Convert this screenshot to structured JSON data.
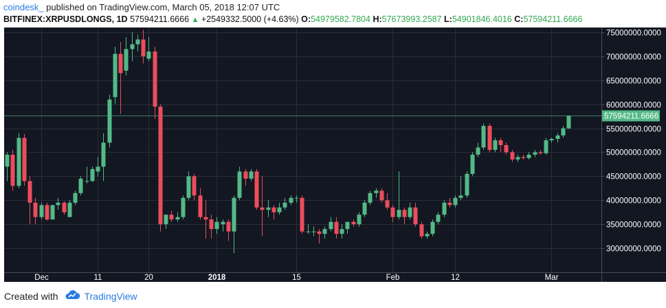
{
  "header": {
    "brand": "coindesk_",
    "published_text": "published on TradingView.com, March 05, 2018 12:07 UTC",
    "symbol": "BITFINEX:XRPUSDLONGS, 1D",
    "last": "57594211.6666",
    "change": "+2549332.5000 (+4.63%)",
    "o_label": "O:",
    "o_value": "54979582.7804",
    "h_label": "H:",
    "h_value": "57673993.2587",
    "l_label": "L:",
    "l_value": "54901846.4016",
    "c_label": "C:",
    "c_value": "57594211.6666"
  },
  "footer": {
    "created_with": "Created with",
    "tradingview": "TradingView"
  },
  "colors": {
    "background": "#131722",
    "grid": "#2a2e39",
    "up": "#53b987",
    "down": "#eb4d5c",
    "price_line": "#3f7d63",
    "price_label_bg": "#53b987",
    "axis_text": "#ffffff"
  },
  "chart_data": {
    "type": "candlestick",
    "ylim": [
      25000000,
      76000000
    ],
    "y_ticks": [
      {
        "value": 30000000,
        "label": "30000000.0000"
      },
      {
        "value": 35000000,
        "label": "35000000.0000"
      },
      {
        "value": 40000000,
        "label": "40000000.0000"
      },
      {
        "value": 45000000,
        "label": "45000000.0000"
      },
      {
        "value": 50000000,
        "label": "50000000.0000"
      },
      {
        "value": 55000000,
        "label": "55000000.0000"
      },
      {
        "value": 60000000,
        "label": "60000000.0000"
      },
      {
        "value": 65000000,
        "label": "65000000.0000"
      },
      {
        "value": 70000000,
        "label": "70000000.0000"
      },
      {
        "value": 75000000,
        "label": "75000000.0000"
      }
    ],
    "x_ticks": [
      {
        "index": 6,
        "label": "Dec",
        "bold": false
      },
      {
        "index": 16,
        "label": "11",
        "bold": false
      },
      {
        "index": 25,
        "label": "20",
        "bold": false
      },
      {
        "index": 37,
        "label": "2018",
        "bold": true
      },
      {
        "index": 51,
        "label": "15",
        "bold": false
      },
      {
        "index": 68,
        "label": "Feb",
        "bold": false
      },
      {
        "index": 79,
        "label": "12",
        "bold": false
      },
      {
        "index": 96,
        "label": "Mar",
        "bold": false
      }
    ],
    "last_price": 57594211.6666,
    "last_price_label": "57594211.6666",
    "candles": [
      {
        "o": 47000000,
        "h": 50000000,
        "l": 44000000,
        "c": 49500000
      },
      {
        "o": 49500000,
        "h": 50500000,
        "l": 42000000,
        "c": 43000000
      },
      {
        "o": 43000000,
        "h": 54000000,
        "l": 42500000,
        "c": 53000000
      },
      {
        "o": 53000000,
        "h": 53800000,
        "l": 43000000,
        "c": 44000000
      },
      {
        "o": 44000000,
        "h": 45000000,
        "l": 35000000,
        "c": 39500000
      },
      {
        "o": 39500000,
        "h": 40500000,
        "l": 35000000,
        "c": 36500000
      },
      {
        "o": 36500000,
        "h": 39500000,
        "l": 36000000,
        "c": 39000000
      },
      {
        "o": 39000000,
        "h": 39500000,
        "l": 35800000,
        "c": 36000000
      },
      {
        "o": 36000000,
        "h": 39000000,
        "l": 36000000,
        "c": 39000000
      },
      {
        "o": 39000000,
        "h": 40500000,
        "l": 38000000,
        "c": 39500000
      },
      {
        "o": 39500000,
        "h": 39800000,
        "l": 37000000,
        "c": 37500000
      },
      {
        "o": 36500000,
        "h": 40000000,
        "l": 36500000,
        "c": 39500000
      },
      {
        "o": 39500000,
        "h": 42000000,
        "l": 39000000,
        "c": 41500000
      },
      {
        "o": 41500000,
        "h": 45000000,
        "l": 41000000,
        "c": 44500000
      },
      {
        "o": 44000000,
        "h": 47000000,
        "l": 43500000,
        "c": 44000000
      },
      {
        "o": 44000000,
        "h": 47000000,
        "l": 43800000,
        "c": 46500000
      },
      {
        "o": 46000000,
        "h": 49000000,
        "l": 45000000,
        "c": 47000000
      },
      {
        "o": 47000000,
        "h": 54000000,
        "l": 44000000,
        "c": 52000000
      },
      {
        "o": 52000000,
        "h": 62000000,
        "l": 51000000,
        "c": 61000000
      },
      {
        "o": 61500000,
        "h": 72000000,
        "l": 60000000,
        "c": 70500000
      },
      {
        "o": 70500000,
        "h": 73000000,
        "l": 58000000,
        "c": 66500000
      },
      {
        "o": 67000000,
        "h": 74000000,
        "l": 66000000,
        "c": 71500000
      },
      {
        "o": 71500000,
        "h": 75000000,
        "l": 69000000,
        "c": 72500000
      },
      {
        "o": 72500000,
        "h": 74500000,
        "l": 71000000,
        "c": 73500000
      },
      {
        "o": 73500000,
        "h": 75500000,
        "l": 68500000,
        "c": 70000000
      },
      {
        "o": 69500000,
        "h": 74000000,
        "l": 69000000,
        "c": 71000000
      },
      {
        "o": 71000000,
        "h": 72000000,
        "l": 57000000,
        "c": 59500000
      },
      {
        "o": 59500000,
        "h": 60000000,
        "l": 33500000,
        "c": 35000000
      },
      {
        "o": 35000000,
        "h": 37000000,
        "l": 34000000,
        "c": 37000000
      },
      {
        "o": 37000000,
        "h": 37800000,
        "l": 35500000,
        "c": 36000000
      },
      {
        "o": 36000000,
        "h": 37500000,
        "l": 35500000,
        "c": 36500000
      },
      {
        "o": 36500000,
        "h": 41000000,
        "l": 36000000,
        "c": 40500000
      },
      {
        "o": 40500000,
        "h": 46000000,
        "l": 40000000,
        "c": 45000000
      },
      {
        "o": 45000000,
        "h": 45500000,
        "l": 40000000,
        "c": 41000000
      },
      {
        "o": 41000000,
        "h": 42500000,
        "l": 36000000,
        "c": 36500000
      },
      {
        "o": 36500000,
        "h": 40000000,
        "l": 32000000,
        "c": 36000000
      },
      {
        "o": 36000000,
        "h": 37000000,
        "l": 32000000,
        "c": 34000000
      },
      {
        "o": 34000000,
        "h": 36500000,
        "l": 33000000,
        "c": 35500000
      },
      {
        "o": 35000000,
        "h": 36000000,
        "l": 33500000,
        "c": 35500000
      },
      {
        "o": 35500000,
        "h": 36000000,
        "l": 31500000,
        "c": 33500000
      },
      {
        "o": 33500000,
        "h": 41000000,
        "l": 29000000,
        "c": 40500000
      },
      {
        "o": 40500000,
        "h": 47000000,
        "l": 40000000,
        "c": 46000000
      },
      {
        "o": 46000000,
        "h": 46500000,
        "l": 43000000,
        "c": 44500000
      },
      {
        "o": 44500000,
        "h": 46500000,
        "l": 44000000,
        "c": 46000000
      },
      {
        "o": 46000000,
        "h": 46500000,
        "l": 38000000,
        "c": 38500000
      },
      {
        "o": 38500000,
        "h": 45000000,
        "l": 32500000,
        "c": 38000000
      },
      {
        "o": 38000000,
        "h": 40000000,
        "l": 36500000,
        "c": 38500000
      },
      {
        "o": 38500000,
        "h": 39000000,
        "l": 36000000,
        "c": 37500000
      },
      {
        "o": 37500000,
        "h": 39500000,
        "l": 37000000,
        "c": 38500000
      },
      {
        "o": 38500000,
        "h": 40500000,
        "l": 38000000,
        "c": 39500000
      },
      {
        "o": 39500000,
        "h": 41000000,
        "l": 39000000,
        "c": 40500000
      },
      {
        "o": 40500000,
        "h": 41000000,
        "l": 39500000,
        "c": 40500000
      },
      {
        "o": 40500000,
        "h": 41000000,
        "l": 33000000,
        "c": 33500000
      },
      {
        "o": 33500000,
        "h": 35000000,
        "l": 33000000,
        "c": 33500000
      },
      {
        "o": 33500000,
        "h": 34500000,
        "l": 32500000,
        "c": 33500000
      },
      {
        "o": 33500000,
        "h": 34000000,
        "l": 31000000,
        "c": 33000000
      },
      {
        "o": 33000000,
        "h": 34500000,
        "l": 32000000,
        "c": 34000000
      },
      {
        "o": 34000000,
        "h": 36500000,
        "l": 33500000,
        "c": 35500000
      },
      {
        "o": 35500000,
        "h": 36500000,
        "l": 32000000,
        "c": 33000000
      },
      {
        "o": 33000000,
        "h": 35000000,
        "l": 32000000,
        "c": 34000000
      },
      {
        "o": 34000000,
        "h": 35500000,
        "l": 33000000,
        "c": 35500000
      },
      {
        "o": 35500000,
        "h": 36000000,
        "l": 34500000,
        "c": 35000000
      },
      {
        "o": 35000000,
        "h": 37500000,
        "l": 34500000,
        "c": 37000000
      },
      {
        "o": 37000000,
        "h": 40000000,
        "l": 36500000,
        "c": 39500000
      },
      {
        "o": 39500000,
        "h": 42000000,
        "l": 39000000,
        "c": 41500000
      },
      {
        "o": 41500000,
        "h": 42500000,
        "l": 40500000,
        "c": 42000000
      },
      {
        "o": 42000000,
        "h": 42500000,
        "l": 39500000,
        "c": 40000000
      },
      {
        "o": 40000000,
        "h": 41500000,
        "l": 38000000,
        "c": 38500000
      },
      {
        "o": 38500000,
        "h": 39000000,
        "l": 35500000,
        "c": 36500000
      },
      {
        "o": 36500000,
        "h": 46000000,
        "l": 36000000,
        "c": 38000000
      },
      {
        "o": 38000000,
        "h": 38500000,
        "l": 35000000,
        "c": 36500000
      },
      {
        "o": 36500000,
        "h": 39500000,
        "l": 36000000,
        "c": 38500000
      },
      {
        "o": 38500000,
        "h": 39500000,
        "l": 34500000,
        "c": 35000000
      },
      {
        "o": 35000000,
        "h": 35500000,
        "l": 32000000,
        "c": 32500000
      },
      {
        "o": 32500000,
        "h": 33500000,
        "l": 32000000,
        "c": 33000000
      },
      {
        "o": 33000000,
        "h": 36000000,
        "l": 32500000,
        "c": 35500000
      },
      {
        "o": 35500000,
        "h": 37500000,
        "l": 35000000,
        "c": 37000000
      },
      {
        "o": 37000000,
        "h": 40000000,
        "l": 36500000,
        "c": 39500000
      },
      {
        "o": 39500000,
        "h": 40500000,
        "l": 38500000,
        "c": 39000000
      },
      {
        "o": 39000000,
        "h": 41000000,
        "l": 38500000,
        "c": 40500000
      },
      {
        "o": 40500000,
        "h": 45000000,
        "l": 40000000,
        "c": 41000000
      },
      {
        "o": 41000000,
        "h": 46000000,
        "l": 40500000,
        "c": 45500000
      },
      {
        "o": 45500000,
        "h": 50000000,
        "l": 45000000,
        "c": 49500000
      },
      {
        "o": 49500000,
        "h": 52000000,
        "l": 49000000,
        "c": 51000000
      },
      {
        "o": 51000000,
        "h": 56000000,
        "l": 50500000,
        "c": 55500000
      },
      {
        "o": 55500000,
        "h": 56000000,
        "l": 50000000,
        "c": 50500000
      },
      {
        "o": 50500000,
        "h": 53000000,
        "l": 50000000,
        "c": 52500000
      },
      {
        "o": 52500000,
        "h": 53000000,
        "l": 50000000,
        "c": 51500000
      },
      {
        "o": 51500000,
        "h": 52000000,
        "l": 49500000,
        "c": 50000000
      },
      {
        "o": 50000000,
        "h": 50500000,
        "l": 48000000,
        "c": 48500000
      },
      {
        "o": 48500000,
        "h": 49500000,
        "l": 48000000,
        "c": 49000000
      },
      {
        "o": 49000000,
        "h": 49500000,
        "l": 48500000,
        "c": 48800000
      },
      {
        "o": 48800000,
        "h": 50000000,
        "l": 48500000,
        "c": 49500000
      },
      {
        "o": 49500000,
        "h": 50500000,
        "l": 49000000,
        "c": 50000000
      },
      {
        "o": 50000000,
        "h": 50500000,
        "l": 49500000,
        "c": 49800000
      },
      {
        "o": 49800000,
        "h": 53000000,
        "l": 49500000,
        "c": 52500000
      },
      {
        "o": 52500000,
        "h": 53000000,
        "l": 52000000,
        "c": 52800000
      },
      {
        "o": 52800000,
        "h": 54000000,
        "l": 52000000,
        "c": 53500000
      },
      {
        "o": 53500000,
        "h": 55500000,
        "l": 53000000,
        "c": 55000000
      },
      {
        "o": 54979582.7804,
        "h": 57673993.2587,
        "l": 54901846.4016,
        "c": 57594211.6666
      }
    ]
  }
}
